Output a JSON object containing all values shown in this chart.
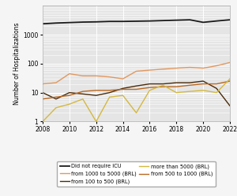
{
  "years": [
    2008,
    2009,
    2010,
    2011,
    2012,
    2013,
    2014,
    2015,
    2016,
    2017,
    2018,
    2019,
    2020,
    2021,
    2022
  ],
  "did_not_require_icu": [
    2400,
    2550,
    2650,
    2750,
    2800,
    2900,
    2900,
    2950,
    3000,
    3100,
    3200,
    3300,
    2700,
    3000,
    3300
  ],
  "from_100_to_500": [
    10,
    6,
    10,
    9,
    8,
    10,
    14,
    17,
    20,
    20,
    22,
    22,
    25,
    14,
    3.5
  ],
  "from_500_to_1000": [
    6,
    7,
    8,
    11,
    12,
    12,
    13,
    13,
    15,
    16,
    16,
    18,
    20,
    20,
    25
  ],
  "from_1000_to_5000": [
    20,
    22,
    45,
    38,
    38,
    35,
    30,
    55,
    60,
    65,
    70,
    75,
    70,
    85,
    110
  ],
  "more_than_5000": [
    1,
    3,
    4,
    6,
    1,
    7,
    8,
    2,
    12,
    18,
    10,
    11,
    12,
    10,
    30
  ],
  "color_icu": "#1a1a1a",
  "color_100_500": "#4a2a08",
  "color_500_1000": "#b86820",
  "color_1000_5000": "#e09860",
  "color_more_5000": "#d4b840",
  "ylabel": "Number of Hospitalizations",
  "ylim_min": 1,
  "ylim_max": 10000,
  "xlim_min": 2008,
  "xlim_max": 2022,
  "xticks": [
    2008,
    2010,
    2012,
    2014,
    2016,
    2018,
    2020,
    2022
  ],
  "yticks": [
    1,
    10,
    100,
    1000
  ],
  "legend_labels": [
    "Did not require ICU",
    "from 1000 to 5000 (BRL)",
    "from 100 to 500 (BRL)",
    "more than 5000 (BRL)",
    "from 500 to 1000 (BRL)"
  ],
  "bg_color": "#e5e5e5",
  "fig_bg_color": "#f5f5f5"
}
